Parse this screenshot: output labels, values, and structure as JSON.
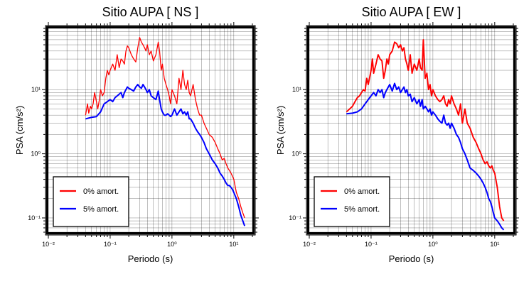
{
  "chart_data": [
    {
      "type": "line",
      "title": "Sitio AUPA [ NS ]",
      "xlabel": "Periodo (s)",
      "ylabel": "PSA (cm/s²)",
      "x_scale": "log",
      "y_scale": "log",
      "xlim": [
        0.01,
        20
      ],
      "ylim": [
        0.06,
        90
      ],
      "x_tick_labels": [
        "10⁻²",
        "10⁻¹",
        "10⁰",
        "10¹"
      ],
      "y_tick_labels": [
        "10⁻¹",
        "10⁰",
        "10¹"
      ],
      "grid": true,
      "legend_position": "bottom-left",
      "series": [
        {
          "name": "0% amort.",
          "color": "#ff0000",
          "x": [
            0.04,
            0.043,
            0.045,
            0.048,
            0.05,
            0.053,
            0.056,
            0.06,
            0.063,
            0.067,
            0.07,
            0.075,
            0.08,
            0.085,
            0.09,
            0.095,
            0.1,
            0.11,
            0.12,
            0.13,
            0.14,
            0.15,
            0.16,
            0.17,
            0.18,
            0.19,
            0.2,
            0.22,
            0.24,
            0.26,
            0.28,
            0.3,
            0.32,
            0.34,
            0.36,
            0.38,
            0.4,
            0.43,
            0.46,
            0.5,
            0.55,
            0.6,
            0.63,
            0.67,
            0.7,
            0.75,
            0.8,
            0.85,
            0.9,
            0.95,
            1.0,
            1.1,
            1.2,
            1.3,
            1.4,
            1.5,
            1.6,
            1.7,
            1.8,
            1.9,
            2.0,
            2.2,
            2.4,
            2.6,
            2.8,
            3.0,
            3.3,
            3.6,
            4.0,
            4.5,
            5.0,
            5.5,
            6.0,
            6.5,
            7.0,
            7.5,
            8.0,
            8.5,
            9.0,
            9.5,
            10.0,
            11.0,
            12.0,
            13.0,
            14.0,
            15.0
          ],
          "values": [
            4.0,
            6.0,
            4.3,
            5.5,
            5.0,
            6.0,
            9.0,
            6.5,
            5.0,
            7.0,
            10.0,
            8.0,
            9.0,
            15.0,
            20.0,
            17.0,
            20.0,
            25.0,
            20.0,
            35.0,
            22.0,
            30.0,
            28.0,
            25.0,
            40.0,
            48.0,
            45.0,
            35.0,
            30.0,
            27.0,
            45.0,
            65.0,
            55.0,
            50.0,
            45.0,
            40.0,
            50.0,
            35.0,
            40.0,
            28.0,
            35.0,
            55.0,
            40.0,
            20.0,
            25.0,
            15.0,
            12.0,
            10.0,
            8.0,
            6.0,
            10.0,
            8.0,
            6.0,
            15.0,
            10.0,
            20.0,
            12.0,
            10.0,
            14.0,
            9.0,
            8.0,
            12.0,
            7.0,
            5.0,
            4.0,
            4.0,
            3.0,
            2.5,
            2.0,
            1.8,
            1.5,
            1.2,
            1.0,
            0.8,
            0.85,
            0.7,
            0.6,
            0.55,
            0.5,
            0.45,
            0.4,
            0.25,
            0.2,
            0.15,
            0.12,
            0.1
          ]
        },
        {
          "name": "5% amort.",
          "color": "#0000ff",
          "x": [
            0.04,
            0.05,
            0.06,
            0.07,
            0.08,
            0.09,
            0.1,
            0.11,
            0.12,
            0.13,
            0.14,
            0.15,
            0.16,
            0.17,
            0.18,
            0.19,
            0.2,
            0.22,
            0.24,
            0.26,
            0.28,
            0.3,
            0.32,
            0.34,
            0.36,
            0.38,
            0.4,
            0.43,
            0.46,
            0.5,
            0.55,
            0.6,
            0.63,
            0.67,
            0.7,
            0.75,
            0.8,
            0.85,
            0.9,
            0.95,
            1.0,
            1.1,
            1.2,
            1.3,
            1.4,
            1.5,
            1.6,
            1.7,
            1.8,
            1.9,
            2.0,
            2.2,
            2.4,
            2.6,
            2.8,
            3.0,
            3.3,
            3.6,
            4.0,
            4.5,
            5.0,
            5.5,
            6.0,
            6.5,
            7.0,
            7.5,
            8.0,
            8.5,
            9.0,
            9.5,
            10.0,
            11.0,
            12.0,
            13.0,
            14.0,
            15.0
          ],
          "values": [
            3.5,
            3.7,
            3.8,
            4.5,
            6.0,
            6.5,
            7.0,
            6.5,
            7.5,
            8.0,
            8.5,
            9.0,
            7.5,
            9.0,
            10.0,
            11.0,
            10.5,
            10.0,
            9.5,
            11.0,
            12.0,
            11.0,
            10.5,
            12.0,
            11.0,
            10.0,
            9.0,
            10.0,
            8.0,
            7.5,
            7.0,
            9.5,
            7.0,
            5.0,
            4.5,
            4.0,
            4.0,
            4.2,
            4.0,
            3.8,
            4.0,
            5.0,
            4.0,
            4.5,
            5.0,
            4.2,
            4.5,
            4.0,
            4.5,
            3.5,
            3.5,
            3.0,
            2.5,
            2.2,
            2.0,
            1.8,
            1.5,
            1.2,
            1.0,
            0.8,
            0.7,
            0.6,
            0.5,
            0.45,
            0.4,
            0.35,
            0.32,
            0.32,
            0.3,
            0.28,
            0.25,
            0.2,
            0.15,
            0.11,
            0.09,
            0.075
          ]
        }
      ]
    },
    {
      "type": "line",
      "title": "Sitio AUPA [ EW ]",
      "xlabel": "Periodo (s)",
      "ylabel": "PSA (cm/s²)",
      "x_scale": "log",
      "y_scale": "log",
      "xlim": [
        0.01,
        20
      ],
      "ylim": [
        0.06,
        90
      ],
      "x_tick_labels": [
        "10⁻²",
        "10⁻¹",
        "10⁰",
        "10¹"
      ],
      "y_tick_labels": [
        "10⁻¹",
        "10⁰",
        "10¹"
      ],
      "grid": true,
      "legend_position": "bottom-left",
      "series": [
        {
          "name": "0% amort.",
          "color": "#ff0000",
          "x": [
            0.04,
            0.045,
            0.05,
            0.055,
            0.06,
            0.065,
            0.07,
            0.075,
            0.08,
            0.085,
            0.09,
            0.1,
            0.105,
            0.11,
            0.12,
            0.13,
            0.14,
            0.15,
            0.16,
            0.17,
            0.18,
            0.19,
            0.2,
            0.22,
            0.24,
            0.26,
            0.28,
            0.3,
            0.32,
            0.34,
            0.36,
            0.38,
            0.4,
            0.43,
            0.46,
            0.5,
            0.55,
            0.6,
            0.63,
            0.67,
            0.7,
            0.75,
            0.8,
            0.85,
            0.9,
            0.95,
            1.0,
            1.1,
            1.2,
            1.3,
            1.4,
            1.5,
            1.6,
            1.7,
            1.8,
            1.9,
            2.0,
            2.2,
            2.4,
            2.6,
            2.8,
            3.0,
            3.3,
            3.6,
            4.0,
            4.5,
            5.0,
            5.5,
            6.0,
            6.5,
            7.0,
            7.5,
            8.0,
            8.5,
            9.0,
            9.5,
            10.0,
            11.0,
            12.0,
            13.0,
            14.0
          ],
          "values": [
            4.5,
            5.0,
            5.5,
            6.5,
            7.5,
            8.0,
            9.0,
            10.0,
            9.5,
            15.0,
            12.0,
            20.0,
            30.0,
            18.0,
            25.0,
            35.0,
            30.0,
            28.0,
            15.0,
            20.0,
            30.0,
            25.0,
            35.0,
            40.0,
            55.0,
            52.0,
            45.0,
            50.0,
            40.0,
            45.0,
            30.0,
            25.0,
            20.0,
            35.0,
            18.0,
            25.0,
            20.0,
            30.0,
            22.0,
            20.0,
            60.0,
            15.0,
            18.0,
            10.0,
            12.0,
            8.0,
            10.0,
            8.0,
            7.0,
            6.5,
            7.0,
            8.0,
            6.0,
            5.5,
            7.0,
            6.0,
            8.0,
            6.0,
            5.0,
            4.0,
            6.0,
            3.0,
            5.0,
            3.0,
            2.5,
            1.8,
            1.5,
            1.2,
            1.0,
            0.8,
            0.7,
            0.75,
            0.65,
            0.6,
            0.65,
            0.55,
            0.5,
            0.3,
            0.15,
            0.1,
            0.09
          ]
        },
        {
          "name": "5% amort.",
          "color": "#0000ff",
          "x": [
            0.04,
            0.05,
            0.06,
            0.07,
            0.08,
            0.09,
            0.1,
            0.11,
            0.12,
            0.13,
            0.14,
            0.15,
            0.16,
            0.17,
            0.18,
            0.19,
            0.2,
            0.22,
            0.24,
            0.26,
            0.28,
            0.3,
            0.32,
            0.34,
            0.36,
            0.38,
            0.4,
            0.43,
            0.46,
            0.5,
            0.55,
            0.6,
            0.63,
            0.67,
            0.7,
            0.75,
            0.8,
            0.85,
            0.9,
            0.95,
            1.0,
            1.1,
            1.2,
            1.3,
            1.4,
            1.5,
            1.6,
            1.7,
            1.8,
            1.9,
            2.0,
            2.2,
            2.4,
            2.6,
            2.8,
            3.0,
            3.3,
            3.6,
            4.0,
            4.5,
            5.0,
            5.5,
            6.0,
            6.5,
            7.0,
            7.5,
            8.0,
            8.5,
            9.0,
            9.5,
            10.0,
            11.0,
            12.0,
            13.0,
            14.0
          ],
          "values": [
            4.2,
            4.3,
            4.5,
            5.0,
            6.0,
            7.0,
            8.0,
            9.0,
            8.0,
            10.0,
            9.0,
            10.0,
            7.5,
            9.0,
            10.0,
            11.0,
            12.0,
            9.5,
            12.5,
            10.0,
            11.0,
            9.0,
            10.0,
            11.0,
            9.0,
            10.0,
            8.0,
            8.5,
            6.5,
            7.5,
            6.0,
            7.0,
            5.5,
            7.0,
            5.0,
            5.5,
            5.0,
            4.5,
            5.0,
            4.0,
            4.5,
            4.0,
            3.5,
            3.2,
            3.0,
            4.0,
            3.0,
            2.8,
            3.0,
            2.5,
            3.0,
            2.5,
            2.0,
            1.8,
            1.5,
            1.2,
            1.0,
            0.8,
            0.6,
            0.55,
            0.5,
            0.45,
            0.4,
            0.35,
            0.3,
            0.25,
            0.2,
            0.18,
            0.15,
            0.12,
            0.1,
            0.09,
            0.08,
            0.07,
            0.065
          ]
        }
      ]
    }
  ]
}
